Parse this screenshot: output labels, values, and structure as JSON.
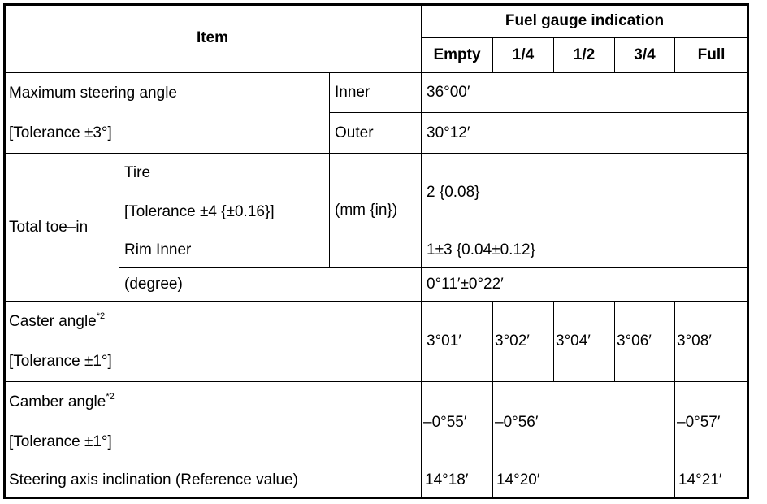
{
  "header": {
    "item": "Item",
    "fuel_gauge": "Fuel gauge indication",
    "levels": [
      "Empty",
      "1/4",
      "1/2",
      "3/4",
      "Full"
    ]
  },
  "max_steering": {
    "label": "Maximum steering angle",
    "tolerance": "[Tolerance ±3°]",
    "inner_label": "Inner",
    "outer_label": "Outer",
    "inner_value": "36°00′",
    "outer_value": "30°12′"
  },
  "toe_in": {
    "label": "Total toe–in",
    "tire_label": "Tire",
    "tire_tolerance": "[Tolerance ±4 {±0.16}]",
    "unit": "(mm {in})",
    "tire_value": "2 {0.08}",
    "rim_label": "Rim Inner",
    "rim_value": "1±3 {0.04±0.12}",
    "degree_label": "(degree)",
    "degree_value": "0°11′±0°22′"
  },
  "caster": {
    "label": "Caster angle",
    "note": "*2",
    "tolerance": "[Tolerance ±1°]",
    "values": [
      "3°01′",
      "3°02′",
      "3°04′",
      "3°06′",
      "3°08′"
    ]
  },
  "camber": {
    "label": "Camber angle",
    "note": "*2",
    "tolerance": "[Tolerance ±1°]",
    "values": [
      "–0°55′",
      "–0°56′",
      "–0°57′"
    ]
  },
  "sai": {
    "label": "Steering axis inclination (Reference value)",
    "values": [
      "14°18′",
      "14°20′",
      "14°21′"
    ]
  }
}
